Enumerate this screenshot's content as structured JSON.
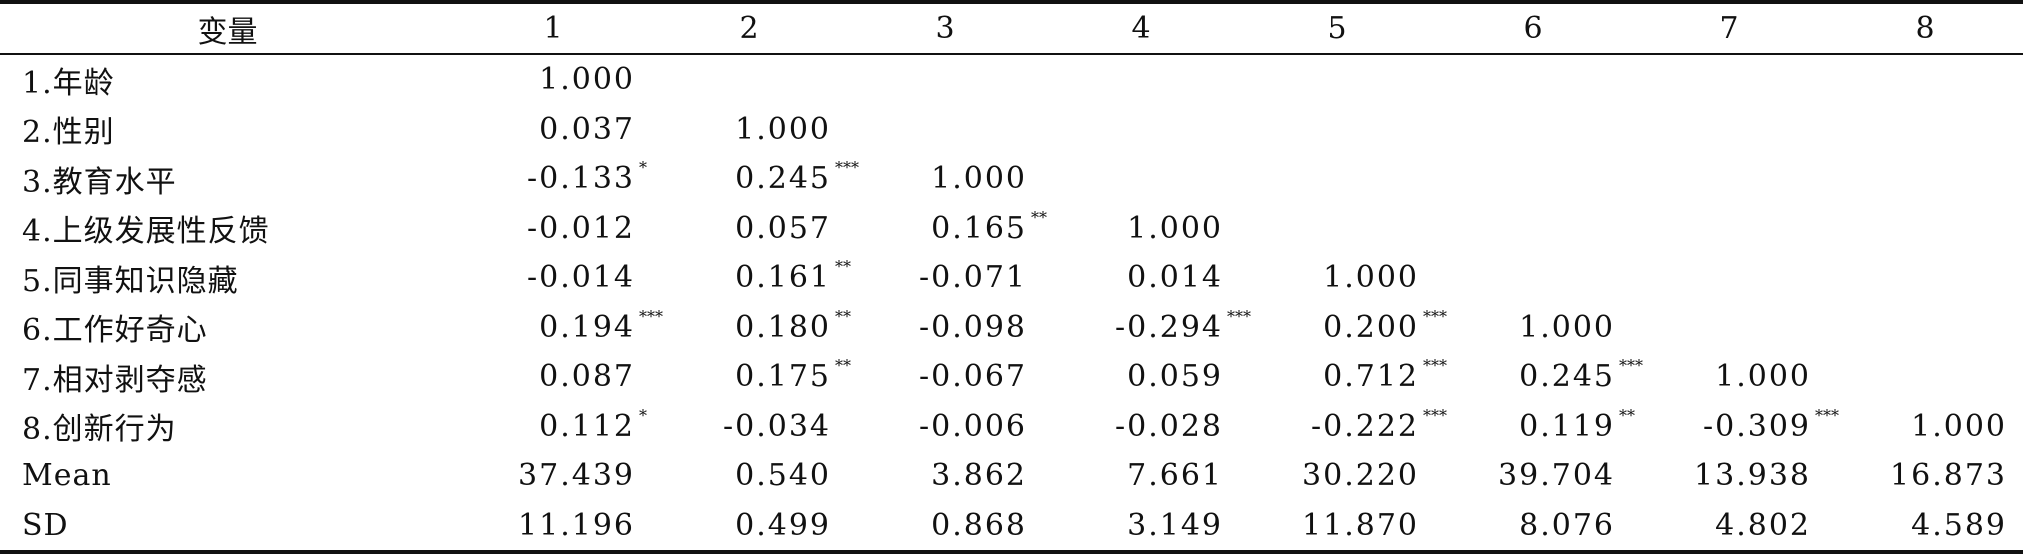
{
  "table": {
    "headers": [
      "变量",
      "1",
      "2",
      "3",
      "4",
      "5",
      "6",
      "7",
      "8"
    ],
    "rows": [
      {
        "label": "1.年龄",
        "cells": [
          [
            "1.000",
            ""
          ],
          [
            "",
            ""
          ],
          [
            "",
            ""
          ],
          [
            "",
            ""
          ],
          [
            "",
            ""
          ],
          [
            "",
            ""
          ],
          [
            "",
            ""
          ],
          [
            "",
            ""
          ]
        ]
      },
      {
        "label": "2.性别",
        "cells": [
          [
            "0.037",
            ""
          ],
          [
            "1.000",
            ""
          ],
          [
            "",
            ""
          ],
          [
            "",
            ""
          ],
          [
            "",
            ""
          ],
          [
            "",
            ""
          ],
          [
            "",
            ""
          ],
          [
            "",
            ""
          ]
        ]
      },
      {
        "label": "3.教育水平",
        "cells": [
          [
            "-0.133",
            "*"
          ],
          [
            "0.245",
            "***"
          ],
          [
            "1.000",
            ""
          ],
          [
            "",
            ""
          ],
          [
            "",
            ""
          ],
          [
            "",
            ""
          ],
          [
            "",
            ""
          ],
          [
            "",
            ""
          ]
        ]
      },
      {
        "label": "4.上级发展性反馈",
        "cells": [
          [
            "-0.012",
            ""
          ],
          [
            "0.057",
            ""
          ],
          [
            "0.165",
            "**"
          ],
          [
            "1.000",
            ""
          ],
          [
            "",
            ""
          ],
          [
            "",
            ""
          ],
          [
            "",
            ""
          ],
          [
            "",
            ""
          ]
        ]
      },
      {
        "label": "5.同事知识隐藏",
        "cells": [
          [
            "-0.014",
            ""
          ],
          [
            "0.161",
            "**"
          ],
          [
            "-0.071",
            ""
          ],
          [
            "0.014",
            ""
          ],
          [
            "1.000",
            ""
          ],
          [
            "",
            ""
          ],
          [
            "",
            ""
          ],
          [
            "",
            ""
          ]
        ]
      },
      {
        "label": "6.工作好奇心",
        "cells": [
          [
            "0.194",
            "***"
          ],
          [
            "0.180",
            "**"
          ],
          [
            "-0.098",
            ""
          ],
          [
            "-0.294",
            "***"
          ],
          [
            "0.200",
            "***"
          ],
          [
            "1.000",
            ""
          ],
          [
            "",
            ""
          ],
          [
            "",
            ""
          ]
        ]
      },
      {
        "label": "7.相对剥夺感",
        "cells": [
          [
            "0.087",
            ""
          ],
          [
            "0.175",
            "**"
          ],
          [
            "-0.067",
            ""
          ],
          [
            "0.059",
            ""
          ],
          [
            "0.712",
            "***"
          ],
          [
            "0.245",
            "***"
          ],
          [
            "1.000",
            ""
          ],
          [
            "",
            ""
          ]
        ]
      },
      {
        "label": "8.创新行为",
        "cells": [
          [
            "0.112",
            "*"
          ],
          [
            "-0.034",
            ""
          ],
          [
            "-0.006",
            ""
          ],
          [
            "-0.028",
            ""
          ],
          [
            "-0.222",
            "***"
          ],
          [
            "0.119",
            "**"
          ],
          [
            "-0.309",
            "***"
          ],
          [
            "1.000",
            ""
          ]
        ]
      },
      {
        "label": "Mean",
        "cells": [
          [
            "37.439",
            ""
          ],
          [
            "0.540",
            ""
          ],
          [
            "3.862",
            ""
          ],
          [
            "7.661",
            ""
          ],
          [
            "30.220",
            ""
          ],
          [
            "39.704",
            ""
          ],
          [
            "13.938",
            ""
          ],
          [
            "16.873",
            ""
          ]
        ]
      },
      {
        "label": "SD",
        "cells": [
          [
            "11.196",
            ""
          ],
          [
            "0.499",
            ""
          ],
          [
            "0.868",
            ""
          ],
          [
            "3.149",
            ""
          ],
          [
            "11.870",
            ""
          ],
          [
            "8.076",
            ""
          ],
          [
            "4.802",
            ""
          ],
          [
            "4.589",
            ""
          ]
        ]
      }
    ]
  }
}
